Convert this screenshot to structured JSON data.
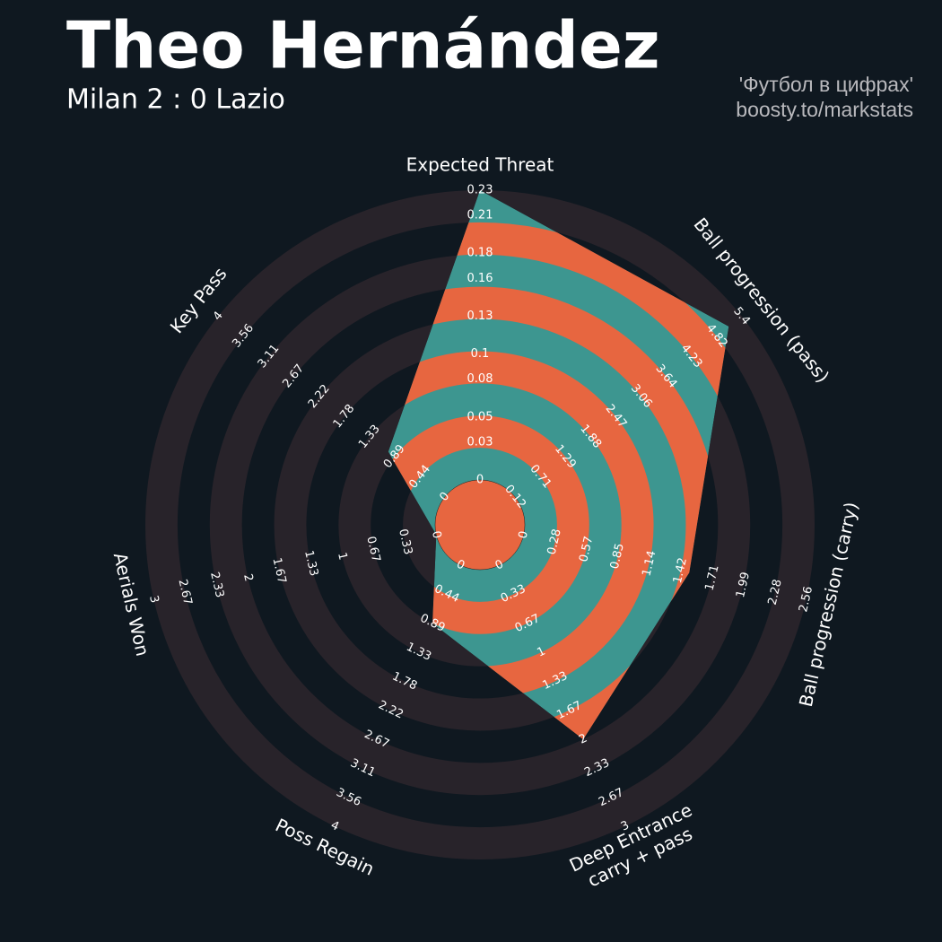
{
  "chart_data": {
    "type": "radar",
    "title": "Theo Hernández",
    "subtitle": "Milan 2 : 0 Lazio",
    "credits": [
      "'Футбол в цифрах'",
      "boosty.to/markstats"
    ],
    "categories": [
      "Expected Threat",
      "Ball progression (pass)",
      "Ball progression (carry)",
      "Deep Entrance\ncarry + pass",
      "Poss Regain",
      "Aerials Won",
      "Key Pass"
    ],
    "values": [
      0.23,
      5.1,
      1.5,
      2.0,
      0.89,
      0.0,
      1.0
    ],
    "axis_lims": [
      [
        0,
        0.23
      ],
      [
        0.12,
        5.4
      ],
      [
        0,
        2.56
      ],
      [
        0,
        3.0
      ],
      [
        0,
        4.0
      ],
      [
        0,
        3.0
      ],
      [
        0,
        4.0
      ]
    ],
    "axis_ticks": [
      [
        0.0,
        0.03,
        0.05,
        0.08,
        0.1,
        0.13,
        0.16,
        0.18,
        0.21,
        0.23
      ],
      [
        0.12,
        0.71,
        1.29,
        1.88,
        2.47,
        3.06,
        3.64,
        4.23,
        4.82,
        5.4
      ],
      [
        0.0,
        0.28,
        0.57,
        0.85,
        1.14,
        1.42,
        1.71,
        1.99,
        2.28,
        2.56
      ],
      [
        0.0,
        0.33,
        0.67,
        1.0,
        1.33,
        1.67,
        2.0,
        2.33,
        2.67,
        3.0
      ],
      [
        0.0,
        0.44,
        0.89,
        1.33,
        1.78,
        2.22,
        2.67,
        3.11,
        3.56,
        4.0
      ],
      [
        0.0,
        0.33,
        0.67,
        1.0,
        1.33,
        1.67,
        2.0,
        2.33,
        2.67,
        3.0
      ],
      [
        0.0,
        0.44,
        0.89,
        1.33,
        1.78,
        2.22,
        2.67,
        3.11,
        3.56,
        4.0
      ]
    ],
    "color": "#3d9690",
    "ring_color": "#e76640",
    "background_ring_color": "#28232a"
  }
}
